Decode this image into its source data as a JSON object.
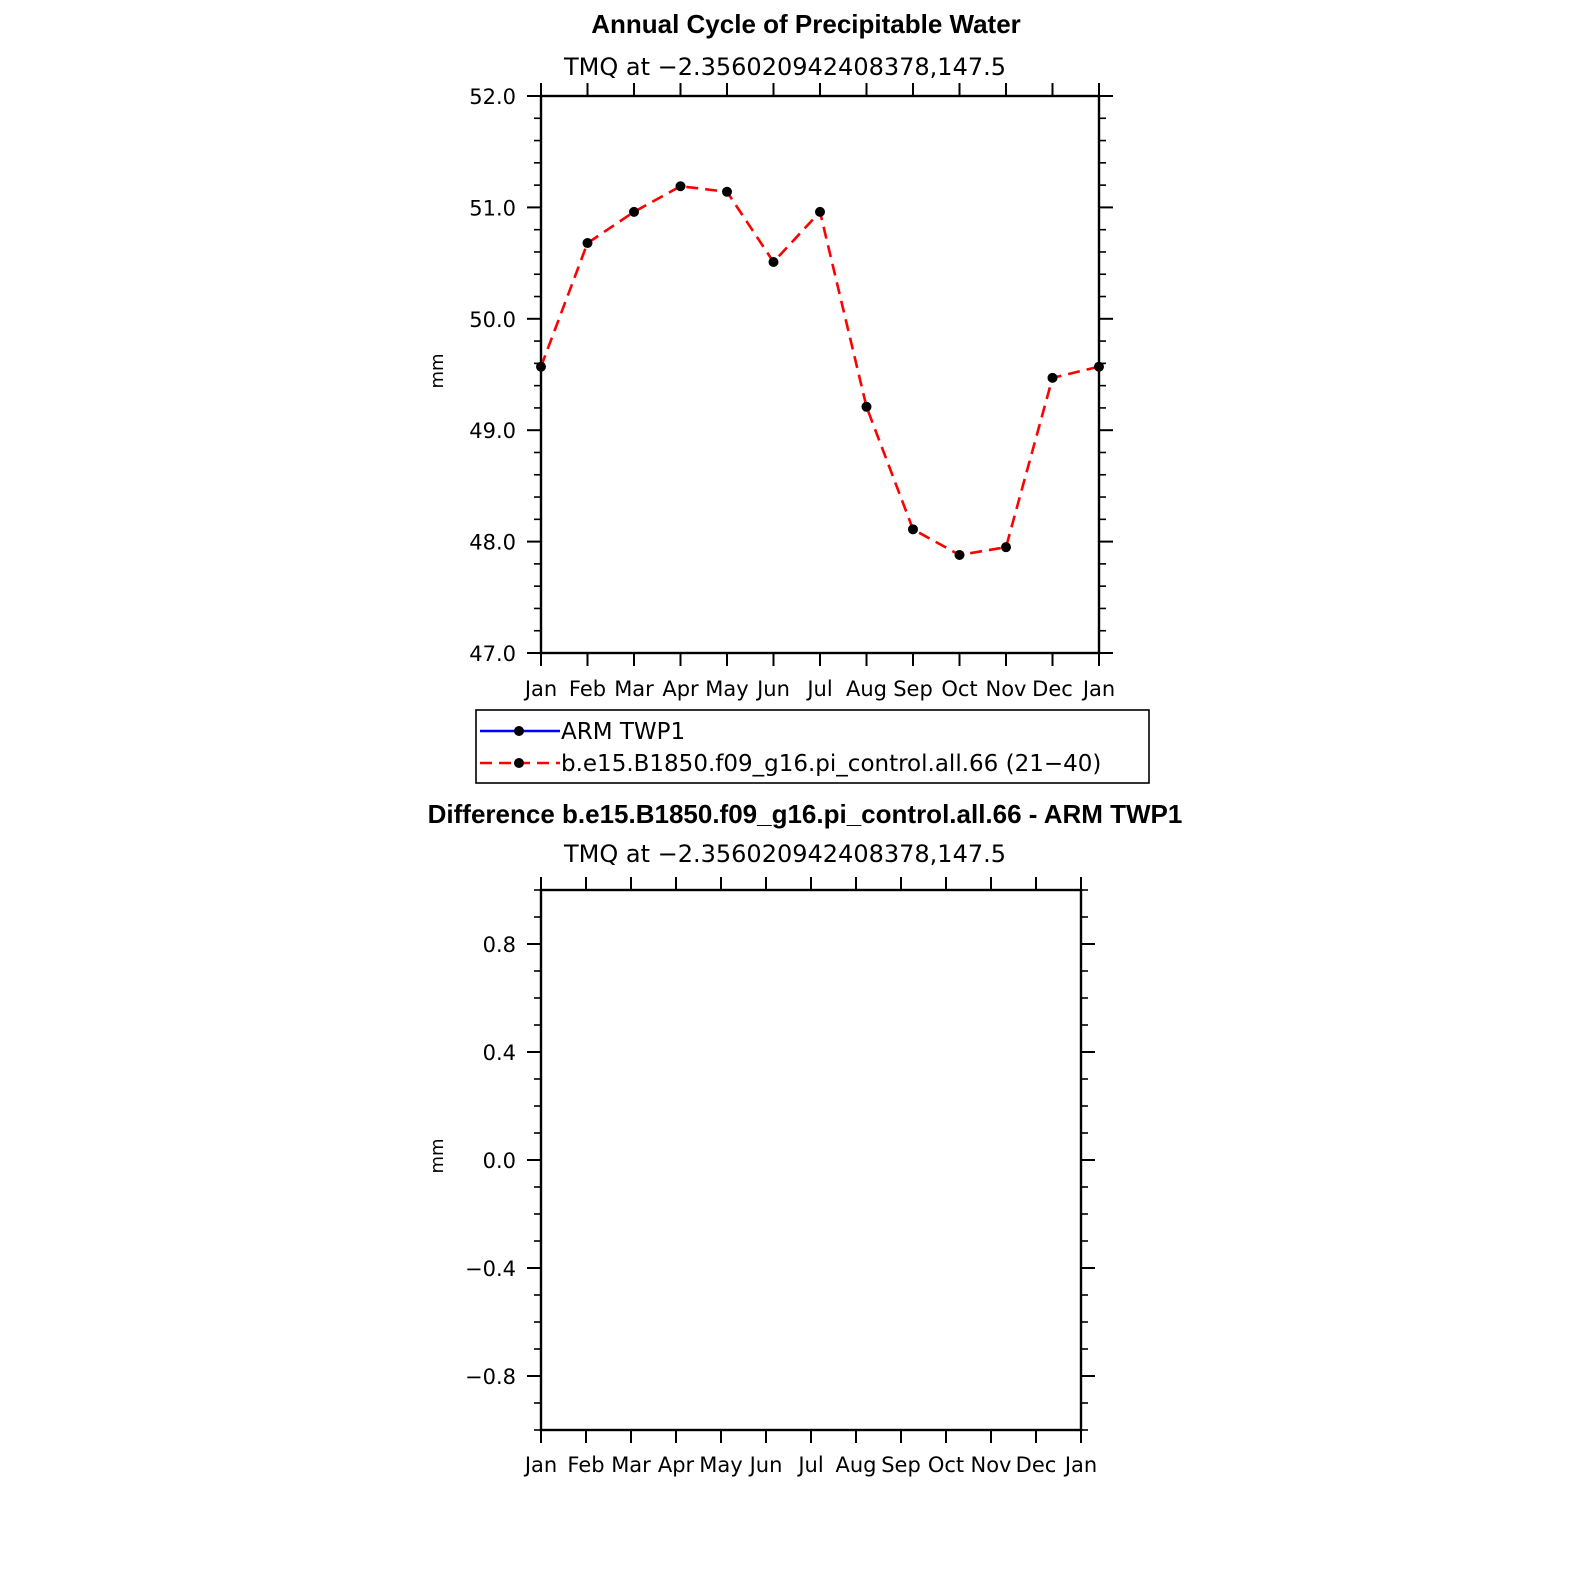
{
  "chart_data": [
    {
      "type": "line",
      "title": "Annual Cycle of Precipitable Water",
      "subtitle": "TMQ at −2.356020942408378,147.5",
      "xlabel": "",
      "ylabel": "mm",
      "categories": [
        "Jan",
        "Feb",
        "Mar",
        "Apr",
        "May",
        "Jun",
        "Jul",
        "Aug",
        "Sep",
        "Oct",
        "Nov",
        "Dec",
        "Jan"
      ],
      "ylim": [
        47.0,
        52.0
      ],
      "y_ticks": [
        {
          "value": 47.0,
          "label": "47.0"
        },
        {
          "value": 48.0,
          "label": "48.0"
        },
        {
          "value": 49.0,
          "label": "49.0"
        },
        {
          "value": 50.0,
          "label": "50.0"
        },
        {
          "value": 51.0,
          "label": "51.0"
        },
        {
          "value": 52.0,
          "label": "52.0"
        }
      ],
      "y_minor_step": 0.2,
      "grid": false,
      "legend": {
        "placement": "bottom",
        "entries": [
          {
            "label": "ARM TWP1",
            "color": "#0000ff",
            "dash": "solid"
          },
          {
            "label": "b.e15.B1850.f09_g16.pi_control.all.66 (21−40)",
            "color": "#ff0000",
            "dash": "dashed"
          }
        ]
      },
      "series": [
        {
          "name": "b.e15.B1850.f09_g16.pi_control.all.66 (21−40)",
          "color": "#ff0000",
          "dash": "dashed",
          "marker_color": "#000000",
          "values": [
            49.57,
            50.68,
            50.96,
            51.19,
            51.14,
            50.51,
            50.96,
            49.21,
            48.11,
            47.88,
            47.95,
            49.47,
            49.57
          ]
        }
      ]
    },
    {
      "type": "line",
      "title": "Difference b.e15.B1850.f09_g16.pi_control.all.66 - ARM TWP1",
      "subtitle": "TMQ at −2.356020942408378,147.5",
      "xlabel": "",
      "ylabel": "mm",
      "categories": [
        "Jan",
        "Feb",
        "Mar",
        "Apr",
        "May",
        "Jun",
        "Jul",
        "Aug",
        "Sep",
        "Oct",
        "Nov",
        "Dec",
        "Jan"
      ],
      "ylim": [
        -1.0,
        1.0
      ],
      "y_ticks": [
        {
          "value": -0.8,
          "label": "−0.8"
        },
        {
          "value": -0.4,
          "label": "−0.4"
        },
        {
          "value": 0.0,
          "label": "0.0"
        },
        {
          "value": 0.4,
          "label": "0.4"
        },
        {
          "value": 0.8,
          "label": "0.8"
        }
      ],
      "y_minor_step": 0.1,
      "grid": false,
      "series": []
    }
  ]
}
